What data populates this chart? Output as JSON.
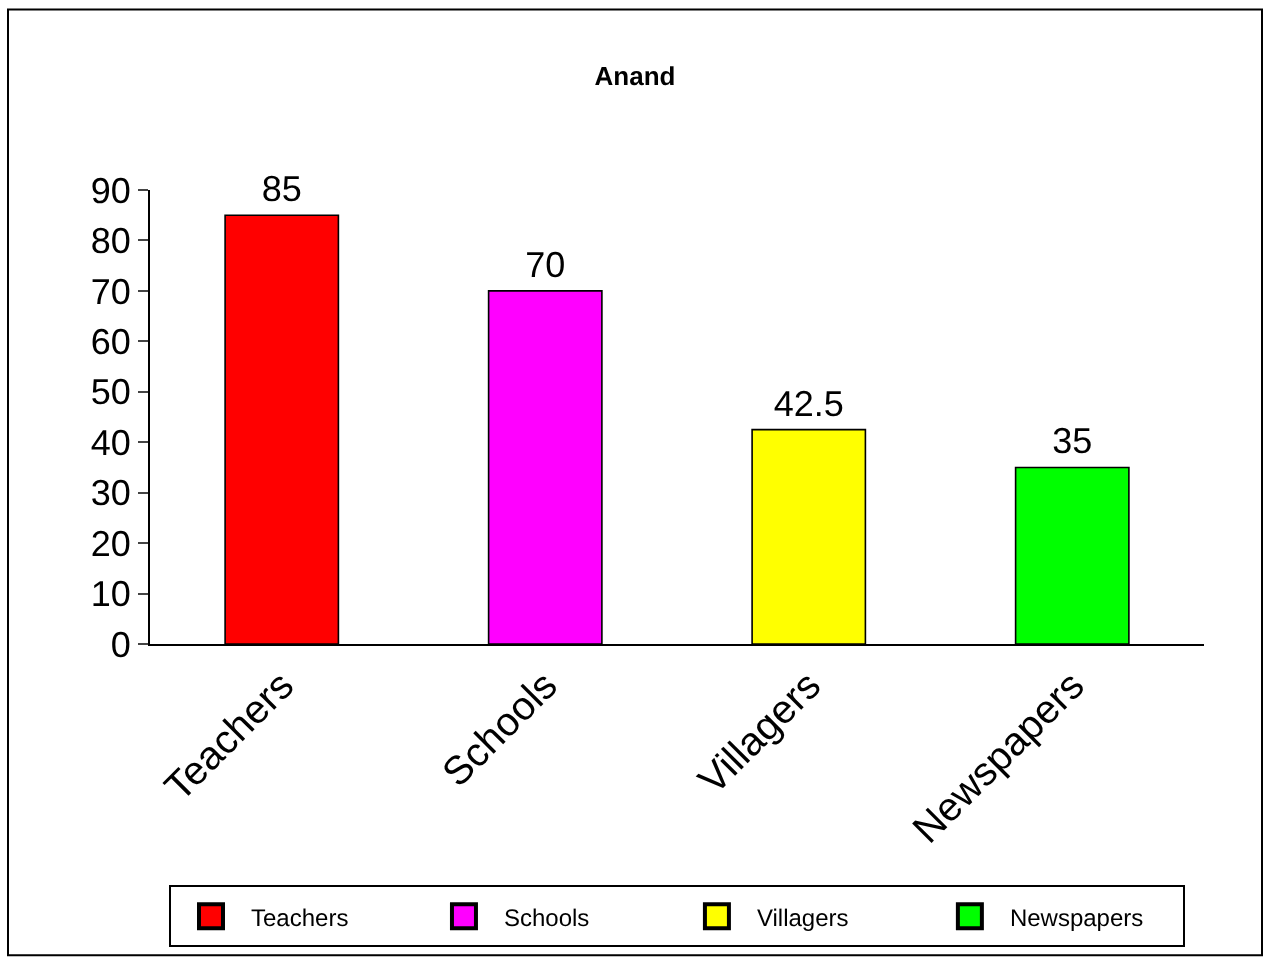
{
  "chart_data": {
    "type": "bar",
    "title": "Anand",
    "categories": [
      "Teachers",
      "Schools",
      "Villagers",
      "Newspapers"
    ],
    "series": [
      {
        "name": "Teachers",
        "color": "#ff0000",
        "values": [
          85,
          null,
          null,
          null
        ]
      },
      {
        "name": "Schools",
        "color": "#ff00ff",
        "values": [
          null,
          70,
          null,
          null
        ]
      },
      {
        "name": "Villagers",
        "color": "#ffff00",
        "values": [
          null,
          null,
          42.5,
          null
        ]
      },
      {
        "name": "Newspapers",
        "color": "#00ff00",
        "values": [
          null,
          null,
          null,
          35
        ]
      }
    ],
    "ylim": [
      0,
      90
    ],
    "yticks": [
      0,
      10,
      20,
      30,
      40,
      50,
      60,
      70,
      80,
      90
    ],
    "data_labels": true,
    "legend": "bottom",
    "grid": false
  }
}
